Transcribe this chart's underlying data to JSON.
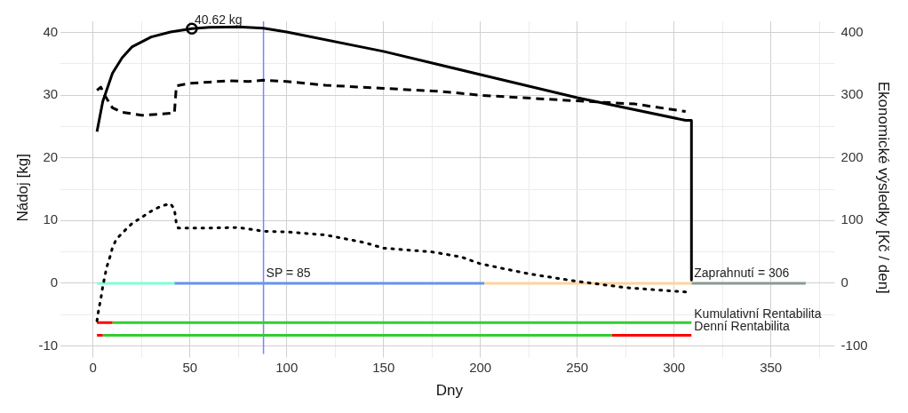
{
  "chart_data": {
    "type": "line",
    "xlabel": "Dny",
    "ylabel": "Nádoj [kg]",
    "y2label": "Ekonomické výsledky [Kč / den]",
    "xlim": [
      -15,
      383
    ],
    "xticks": [
      0,
      {
        "value": 25,
        "label": null
      },
      50,
      {
        "value": 75,
        "label": null
      },
      100,
      {
        "value": 125,
        "label": null
      },
      150,
      {
        "value": 175,
        "label": null
      },
      200,
      {
        "value": 225,
        "label": null
      },
      250,
      {
        "value": 275,
        "label": null
      },
      300,
      {
        "value": 325,
        "label": null
      },
      350,
      {
        "value": 375,
        "label": null
      }
    ],
    "ylim": [
      -11.3,
      41.8
    ],
    "yticks": [
      -10,
      {
        "value": -5,
        "label": null
      },
      0,
      {
        "value": 5,
        "label": null
      },
      10,
      {
        "value": 15,
        "label": null
      },
      20,
      {
        "value": 25,
        "label": null
      },
      30,
      {
        "value": 35,
        "label": null
      },
      40
    ],
    "y2lim": [
      -113,
      418
    ],
    "y2ticks": [
      -100,
      0,
      100,
      200,
      300,
      400
    ],
    "grid": true,
    "legend": false,
    "series": [
      {
        "color": "#000000",
        "line_style": "solid",
        "x": [
          2,
          5,
          10,
          15,
          20,
          30,
          40,
          51,
          60,
          75,
          88,
          100,
          150,
          200,
          250,
          306,
          309,
          309
        ],
        "values": [
          24.2,
          29,
          33.5,
          36,
          37.7,
          39.3,
          40.1,
          40.62,
          40.85,
          40.9,
          40.7,
          40.1,
          37,
          33.3,
          29.6,
          26,
          26,
          0.5
        ]
      },
      {
        "color": "#000000",
        "line_style": "dashed",
        "x": [
          2,
          4,
          6,
          10,
          15,
          25,
          35,
          42,
          43,
          50,
          60,
          70,
          80,
          88,
          100,
          120,
          150,
          180,
          200,
          250,
          280,
          306
        ],
        "values": [
          30.8,
          31.3,
          30,
          28,
          27.3,
          26.8,
          27,
          27.2,
          31.5,
          31.9,
          32.1,
          32.3,
          32.2,
          32.4,
          32.2,
          31.6,
          31.1,
          30.6,
          30,
          29.1,
          28.6,
          27.4
        ]
      },
      {
        "color": "#000000",
        "line_style": "dotted",
        "axis": "y2",
        "x": [
          2,
          3,
          4,
          5,
          6,
          7,
          8,
          9,
          10,
          12,
          15,
          20,
          25,
          30,
          35,
          40,
          42,
          43,
          44,
          60,
          75,
          88,
          100,
          120,
          140,
          150,
          175,
          190,
          200,
          225,
          250,
          275,
          306
        ],
        "values": [
          -60,
          -40,
          -25,
          -5,
          10,
          25,
          35,
          45,
          57,
          70,
          80,
          95,
          105,
          115,
          123,
          127,
          118,
          95,
          88,
          88,
          89,
          83,
          82,
          77,
          65,
          56,
          50,
          42,
          31,
          15,
          3,
          -7,
          -14
        ]
      },
      {
        "color": "#7fffd4",
        "line_style": "solid",
        "x": [
          2,
          42
        ],
        "values": [
          0,
          0
        ]
      },
      {
        "color": "#6495ed",
        "line_style": "solid",
        "x": [
          42,
          202
        ],
        "values": [
          0,
          0
        ]
      },
      {
        "color": "#ffd39b",
        "line_style": "solid",
        "x": [
          202,
          309
        ],
        "values": [
          0,
          0
        ]
      },
      {
        "color": "#8a9a94",
        "line_style": "solid",
        "x": [
          309,
          368
        ],
        "values": [
          0,
          0
        ]
      },
      {
        "color": "#ff0000",
        "line_style": "solid",
        "x": [
          2,
          10
        ],
        "values": [
          -6.3,
          -6.3
        ]
      },
      {
        "color": "#32cd32",
        "line_style": "solid",
        "x": [
          10,
          309
        ],
        "values": [
          -6.3,
          -6.3
        ]
      },
      {
        "color": "#ff0000",
        "line_style": "solid",
        "x": [
          2,
          5
        ],
        "values": [
          -8.3,
          -8.3
        ]
      },
      {
        "color": "#32cd32",
        "line_style": "solid",
        "x": [
          5,
          268
        ],
        "values": [
          -8.3,
          -8.3
        ]
      },
      {
        "color": "#ff0000",
        "line_style": "solid",
        "x": [
          268,
          309
        ],
        "values": [
          -8.3,
          -8.3
        ]
      },
      {
        "type": "scatter",
        "color": "#000000",
        "marker": "circle",
        "x": [
          51
        ],
        "values": [
          40.62
        ]
      }
    ],
    "ref_lines": [
      {
        "axis": "x",
        "value": 88,
        "color": "#8080ff"
      }
    ],
    "annotations": [
      {
        "text": "40.62 kg",
        "x": 51,
        "y": 40.62
      },
      {
        "text": "SP = 85",
        "x": 88,
        "y": 0.3
      },
      {
        "text": "Zaprahnutí = 306",
        "x": 309,
        "y": 0.3
      },
      {
        "text": "Kumulativní Rentabilita",
        "x": 309,
        "y": -6.3
      },
      {
        "text": "Denní Rentabilita",
        "x": 309,
        "y": -8.3
      }
    ]
  }
}
